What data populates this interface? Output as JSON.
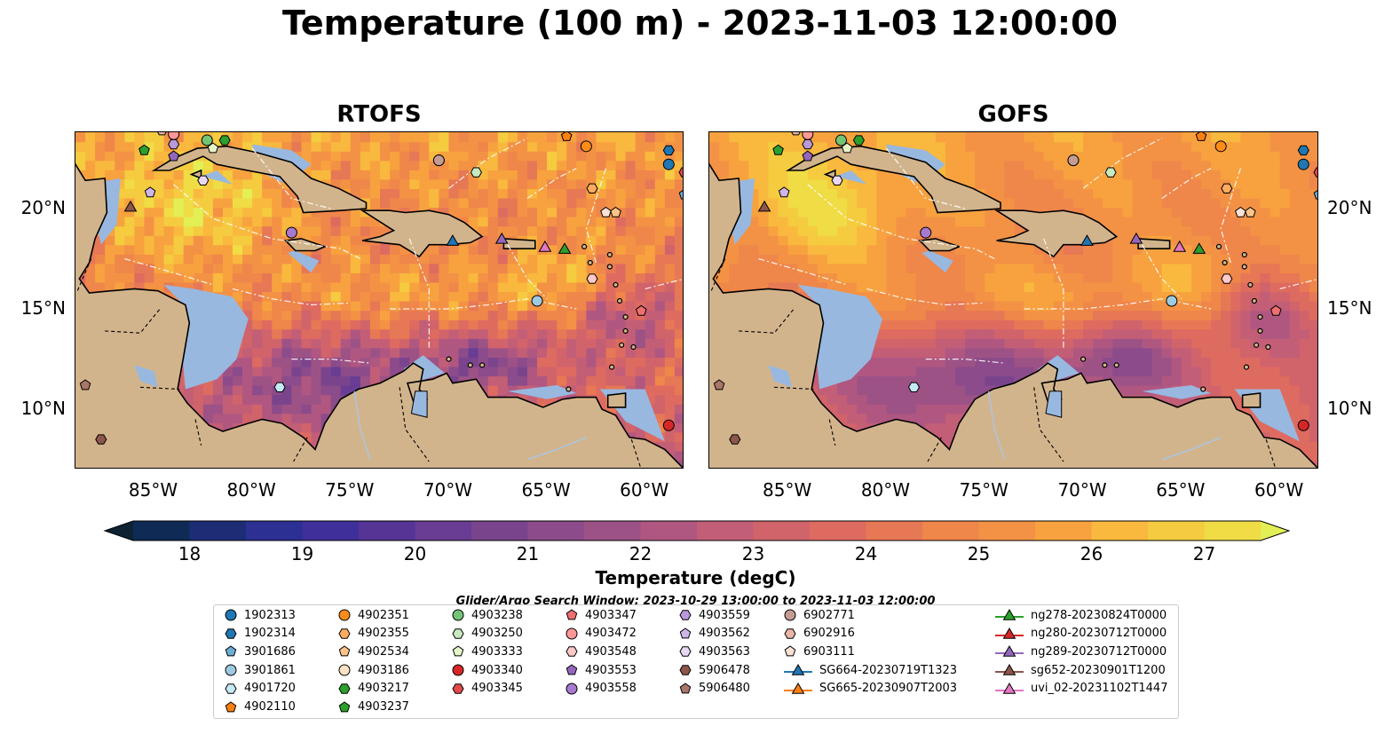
{
  "title": "Temperature (100 m) - 2023-11-03 12:00:00",
  "panels": [
    {
      "title": "RTOFS",
      "variant": "rtofs"
    },
    {
      "title": "GOFS",
      "variant": "gofs"
    }
  ],
  "axes": {
    "x_ticks": [
      "85°W",
      "80°W",
      "75°W",
      "70°W",
      "65°W",
      "60°W"
    ],
    "x_values": [
      -85,
      -80,
      -75,
      -70,
      -65,
      -60
    ],
    "y_ticks": [
      "20°N",
      "15°N",
      "10°N"
    ],
    "y_values": [
      20,
      15,
      10
    ],
    "lon_range": [
      -89,
      -58
    ],
    "lat_range": [
      7,
      23.8
    ]
  },
  "colorbar": {
    "label": "Temperature (degC)",
    "ticks": [
      "18",
      "19",
      "20",
      "21",
      "22",
      "23",
      "24",
      "25",
      "26",
      "27"
    ],
    "range": [
      18,
      27
    ],
    "step": 0.5,
    "extend": "both",
    "colors": [
      "#0d2233",
      "#0f2a55",
      "#1d2d75",
      "#2c3093",
      "#3f2f9a",
      "#553495",
      "#683d93",
      "#7a448d",
      "#8c4b8a",
      "#9d5286",
      "#b05781",
      "#c35e77",
      "#d1636b",
      "#de6b60",
      "#e77855",
      "#ef864a",
      "#f39244",
      "#f7a23f",
      "#f9b83e",
      "#f5cb3f",
      "#f0dc44",
      "#e2ef55"
    ]
  },
  "search_window": "Glider/Argo Search Window: 2023-10-29 13:00:00 to 2023-11-03 12:00:00",
  "land_color": "#d2b48c",
  "shelf_color": "#98b8e0",
  "pacific_color": "#061f30",
  "legend": [
    {
      "label": "1902313",
      "marker": "circle",
      "color": "#1f77b4"
    },
    {
      "label": "1902314",
      "marker": "hexagon",
      "color": "#1f77b4"
    },
    {
      "label": "3901686",
      "marker": "pentagon",
      "color": "#6baed6"
    },
    {
      "label": "3901861",
      "marker": "circle",
      "color": "#9ecae1"
    },
    {
      "label": "4901720",
      "marker": "hexagon",
      "color": "#c6e9f6"
    },
    {
      "label": "4902110",
      "marker": "pentagon",
      "color": "#ff7f0e"
    },
    {
      "label": "4902351",
      "marker": "circle",
      "color": "#ff8c1a"
    },
    {
      "label": "4902355",
      "marker": "hexagon",
      "color": "#ffab60"
    },
    {
      "label": "4902534",
      "marker": "pentagon",
      "color": "#ffc48a"
    },
    {
      "label": "4903186",
      "marker": "circle",
      "color": "#ffe3c4"
    },
    {
      "label": "4903217",
      "marker": "hexagon",
      "color": "#2ca02c"
    },
    {
      "label": "4903237",
      "marker": "pentagon",
      "color": "#2ca02c"
    },
    {
      "label": "4903238",
      "marker": "circle",
      "color": "#74c476"
    },
    {
      "label": "4903250",
      "marker": "hexagon",
      "color": "#c7e9c0"
    },
    {
      "label": "4903333",
      "marker": "pentagon",
      "color": "#e5f5c8"
    },
    {
      "label": "4903340",
      "marker": "circle",
      "color": "#d62728"
    },
    {
      "label": "4903345",
      "marker": "hexagon",
      "color": "#e34a4a"
    },
    {
      "label": "4903347",
      "marker": "pentagon",
      "color": "#f07070"
    },
    {
      "label": "4903472",
      "marker": "circle",
      "color": "#ff9896"
    },
    {
      "label": "4903548",
      "marker": "hexagon",
      "color": "#ffc9c8"
    },
    {
      "label": "4903553",
      "marker": "pentagon",
      "color": "#9467bd"
    },
    {
      "label": "4903558",
      "marker": "circle",
      "color": "#a77ad0"
    },
    {
      "label": "4903559",
      "marker": "hexagon",
      "color": "#b998dc"
    },
    {
      "label": "4903562",
      "marker": "pentagon",
      "color": "#cfb5e8"
    },
    {
      "label": "4903563",
      "marker": "hexagon",
      "color": "#e8d8f5"
    },
    {
      "label": "5906478",
      "marker": "hexagon",
      "color": "#8c564b"
    },
    {
      "label": "5906480",
      "marker": "pentagon",
      "color": "#a9766a"
    },
    {
      "label": "6902771",
      "marker": "circle",
      "color": "#c49c94"
    },
    {
      "label": "6902916",
      "marker": "hexagon",
      "color": "#e8b5a8"
    },
    {
      "label": "6903111",
      "marker": "pentagon",
      "color": "#fde0d6"
    },
    {
      "label": "SG664-20230719T1323",
      "marker": "triangle-line",
      "color": "#1f77b4"
    },
    {
      "label": "SG665-20230907T2003",
      "marker": "triangle-line",
      "color": "#ff7f0e"
    },
    {
      "label": "ng278-20230824T0000",
      "marker": "triangle-line",
      "color": "#2ca02c"
    },
    {
      "label": "ng280-20230712T0000",
      "marker": "triangle-line",
      "color": "#d62728"
    },
    {
      "label": "ng289-20230712T0000",
      "marker": "triangle-line",
      "color": "#9467bd"
    },
    {
      "label": "sg652-20230901T1200",
      "marker": "triangle-line",
      "color": "#8c564b"
    },
    {
      "label": "uvi_02-20231102T1447",
      "marker": "triangle-line",
      "color": "#e377c2"
    }
  ],
  "observations": [
    {
      "id": "1902313",
      "lon": -58.8,
      "lat": 22.2
    },
    {
      "id": "1902314",
      "lon": -58.8,
      "lat": 22.9
    },
    {
      "id": "3901686",
      "lon": -58.0,
      "lat": 20.7
    },
    {
      "id": "3901861",
      "lon": -65.5,
      "lat": 15.4
    },
    {
      "id": "4901720",
      "lon": -78.6,
      "lat": 11.1
    },
    {
      "id": "4902110",
      "lon": -64.0,
      "lat": 23.6
    },
    {
      "id": "4902351",
      "lon": -63.0,
      "lat": 23.1
    },
    {
      "id": "4902355",
      "lon": -62.7,
      "lat": 21.0
    },
    {
      "id": "4902534",
      "lon": -61.5,
      "lat": 19.8
    },
    {
      "id": "4903186",
      "lon": -70.5,
      "lat": 22.4
    },
    {
      "id": "4903217",
      "lon": -81.4,
      "lat": 23.4
    },
    {
      "id": "4903237",
      "lon": -85.5,
      "lat": 22.9
    },
    {
      "id": "4903238",
      "lon": -82.3,
      "lat": 23.4
    },
    {
      "id": "4903250",
      "lon": -68.6,
      "lat": 21.8
    },
    {
      "id": "4903333",
      "lon": -82.0,
      "lat": 23.0
    },
    {
      "id": "4903340",
      "lon": -58.8,
      "lat": 9.2
    },
    {
      "id": "4903345",
      "lon": -58.0,
      "lat": 21.8
    },
    {
      "id": "4903347",
      "lon": -60.2,
      "lat": 14.9
    },
    {
      "id": "4903472",
      "lon": -84.0,
      "lat": 23.7
    },
    {
      "id": "4903548",
      "lon": -62.7,
      "lat": 16.5
    },
    {
      "id": "4903553",
      "lon": -84.0,
      "lat": 22.6
    },
    {
      "id": "4903558",
      "lon": -78.0,
      "lat": 18.8
    },
    {
      "id": "4903559",
      "lon": -84.0,
      "lat": 23.2
    },
    {
      "id": "4903562",
      "lon": -85.2,
      "lat": 20.8
    },
    {
      "id": "4903563",
      "lon": -82.5,
      "lat": 21.4
    },
    {
      "id": "5906478",
      "lon": -87.7,
      "lat": 8.5
    },
    {
      "id": "5906480",
      "lon": -88.5,
      "lat": 11.2
    },
    {
      "id": "6902771",
      "lon": -70.5,
      "lat": 22.4
    },
    {
      "id": "6902916",
      "lon": -84.6,
      "lat": 23.9
    },
    {
      "id": "6903111",
      "lon": -62.0,
      "lat": 19.8
    },
    {
      "id": "SG664-20230719T1323",
      "lon": -69.8,
      "lat": 18.4
    },
    {
      "id": "ng278-20230824T0000",
      "lon": -64.1,
      "lat": 18.0
    },
    {
      "id": "ng289-20230712T0000",
      "lon": -67.3,
      "lat": 18.5
    },
    {
      "id": "sg652-20230901T1200",
      "lon": -86.2,
      "lat": 20.1
    },
    {
      "id": "uvi_02-20231102T1447",
      "lon": -65.1,
      "lat": 18.1
    }
  ]
}
